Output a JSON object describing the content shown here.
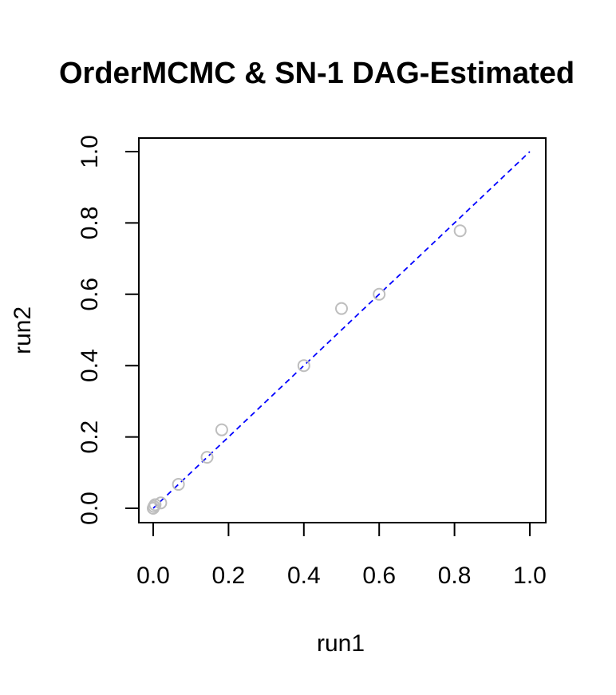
{
  "chart_data": {
    "type": "scatter",
    "title": "OrderMCMC & SN-1 DAG-Estimated",
    "xlabel": "run1",
    "ylabel": "run2",
    "xlim": [
      0,
      1
    ],
    "ylim": [
      0,
      1
    ],
    "xticks": [
      "0.0",
      "0.2",
      "0.4",
      "0.6",
      "0.8",
      "1.0"
    ],
    "yticks": [
      "0.0",
      "0.2",
      "0.4",
      "0.6",
      "0.8",
      "1.0"
    ],
    "grid": false,
    "reference_line": {
      "style": "dashed",
      "color": "#0000ff",
      "from": [
        0,
        0
      ],
      "to": [
        1,
        1
      ]
    },
    "point_color": "#bebebe",
    "marker": "open-circle",
    "points": [
      {
        "x": 0.0,
        "y": 0.0
      },
      {
        "x": 0.002,
        "y": 0.005
      },
      {
        "x": 0.005,
        "y": 0.01
      },
      {
        "x": 0.02,
        "y": 0.015
      },
      {
        "x": 0.067,
        "y": 0.067
      },
      {
        "x": 0.143,
        "y": 0.143
      },
      {
        "x": 0.182,
        "y": 0.22
      },
      {
        "x": 0.4,
        "y": 0.4
      },
      {
        "x": 0.5,
        "y": 0.56
      },
      {
        "x": 0.6,
        "y": 0.6
      },
      {
        "x": 0.815,
        "y": 0.778
      }
    ]
  }
}
